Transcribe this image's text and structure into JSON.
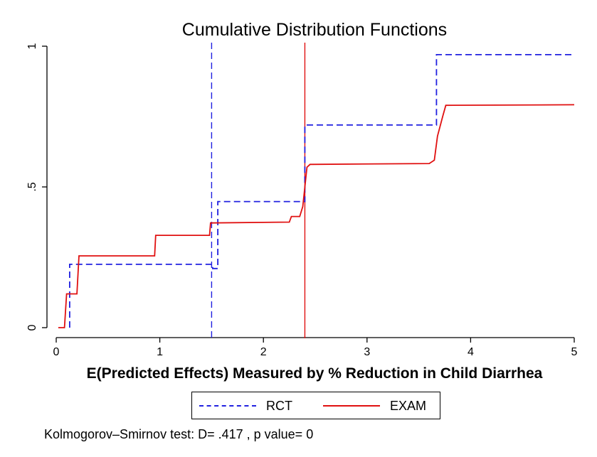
{
  "chart_data": {
    "type": "line",
    "title": "Cumulative Distribution Functions",
    "xlabel": "E(Predicted Effects) Measured by % Reduction in Child Diarrhea",
    "ylabel": "",
    "xlim": [
      0,
      5
    ],
    "ylim": [
      0,
      1
    ],
    "xticks": [
      0,
      1,
      2,
      3,
      4,
      5
    ],
    "xtick_labels": [
      "0",
      "1",
      "2",
      "3",
      "4",
      "5"
    ],
    "yticks": [
      0,
      0.5,
      1
    ],
    "ytick_labels": [
      "0",
      ".5",
      "1"
    ],
    "grid": false,
    "legend_position": "bottom",
    "series": [
      {
        "name": "RCT",
        "color": "#2020e0",
        "style": "dashed",
        "x": [
          0.13,
          0.13,
          1.51,
          1.51,
          1.56,
          1.56,
          2.4,
          2.4,
          3.67,
          3.67,
          5.0
        ],
        "y": [
          0.0,
          0.225,
          0.225,
          0.21,
          0.21,
          0.448,
          0.448,
          0.72,
          0.72,
          0.97,
          0.97
        ]
      },
      {
        "name": "EXAM",
        "color": "#e01010",
        "style": "solid",
        "x": [
          0.02,
          0.08,
          0.1,
          0.2,
          0.22,
          0.95,
          0.96,
          1.48,
          1.49,
          2.25,
          2.27,
          2.35,
          2.38,
          2.42,
          2.45,
          3.6,
          3.65,
          3.68,
          3.73,
          3.76,
          5.0
        ],
        "y": [
          0.0,
          0.0,
          0.12,
          0.12,
          0.255,
          0.255,
          0.328,
          0.328,
          0.372,
          0.375,
          0.395,
          0.395,
          0.43,
          0.57,
          0.58,
          0.583,
          0.595,
          0.68,
          0.75,
          0.79,
          0.792
        ]
      }
    ],
    "reference_lines": [
      {
        "axis": "x",
        "value": 1.5,
        "color": "#2020e0",
        "style": "dashed"
      },
      {
        "axis": "x",
        "value": 2.4,
        "color": "#e01010",
        "style": "solid"
      }
    ]
  },
  "legend": {
    "items": [
      {
        "label": "RCT",
        "color": "#2020e0",
        "style": "dashed"
      },
      {
        "label": "EXAM",
        "color": "#e01010",
        "style": "solid"
      }
    ]
  },
  "note": "Kolmogorov–Smirnov test: D= .417 , p value= 0"
}
